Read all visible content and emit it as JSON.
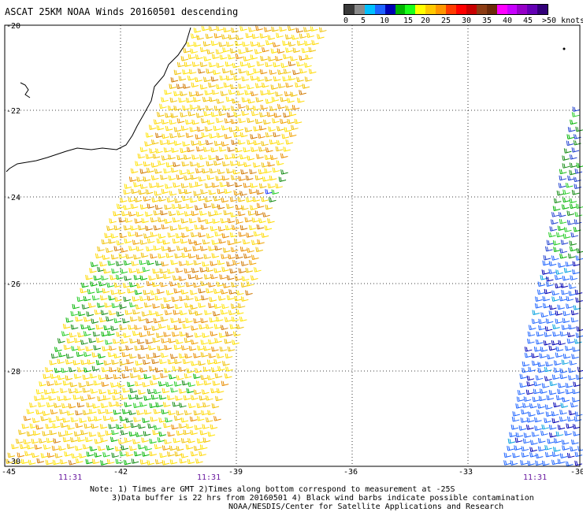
{
  "title": "ASCAT 25KM NOAA Winds 20160501 descending",
  "scale": {
    "labels": [
      "0",
      "5",
      "10",
      "15",
      "20",
      "25",
      "30",
      "35",
      "40",
      "45",
      ">50 knots"
    ],
    "colors": [
      "#3a3a3a",
      "#8a8a8a",
      "#00bfff",
      "#1e64ff",
      "#0000b4",
      "#00b400",
      "#19ff19",
      "#ffff00",
      "#ffc800",
      "#ff9600",
      "#ff3c00",
      "#ff0000",
      "#c80000",
      "#8c3c14",
      "#6b2a0a",
      "#ff00ff",
      "#c800ff",
      "#9600c8",
      "#6400b4",
      "#320078"
    ]
  },
  "axes": {
    "lat_labels": [
      "-20",
      "-22",
      "-24",
      "-26",
      "-28",
      "-30"
    ],
    "lon_labels": [
      "-45",
      "-42",
      "-39",
      "-36",
      "-33",
      "-30"
    ]
  },
  "times": [
    "11:31",
    "11:31",
    "11:31"
  ],
  "notes": [
    "Note: 1) Times are GMT 2)Times along bottom correspond to measurement at -25S",
    "3)Data buffer is 22 hrs from 20160501 4) Black wind barbs indicate possible contamination",
    "NOAA/NESDIS/Center for Satellite Applications and Research"
  ]
}
